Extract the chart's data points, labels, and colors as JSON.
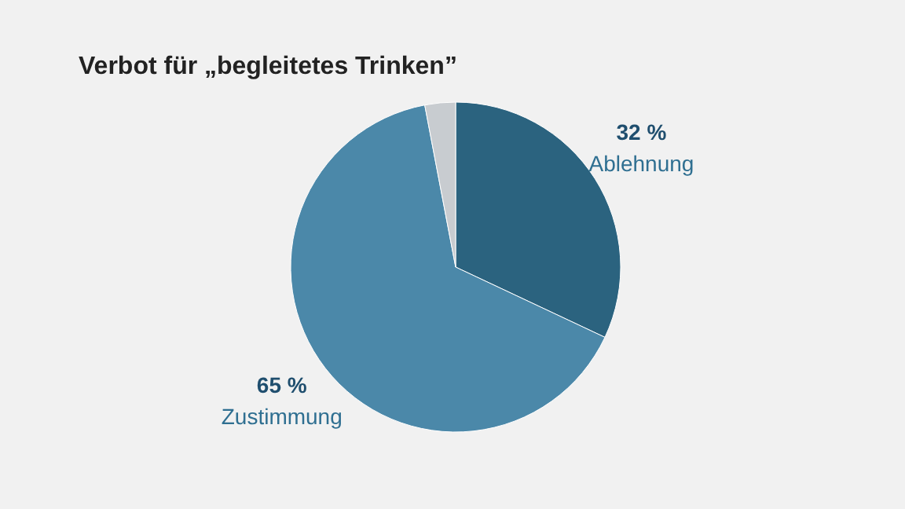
{
  "chart_data": {
    "type": "pie",
    "title": "Verbot für „begleitetes Trinken”",
    "categories": [
      "Ablehnung",
      "Zustimmung",
      null
    ],
    "values": [
      32,
      65,
      3
    ],
    "colors": [
      "#2b637f",
      "#4b88a9",
      "#c8ccd0"
    ],
    "value_labels": [
      "32 %",
      "65 %",
      null
    ]
  }
}
